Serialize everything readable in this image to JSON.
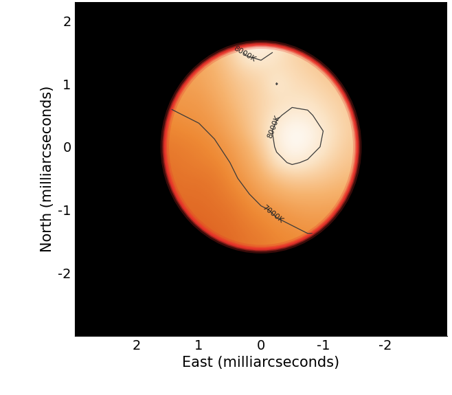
{
  "chart_data": {
    "type": "heatmap",
    "xlabel": "East (milliarcseconds)",
    "ylabel": "North (milliarcseconds)",
    "xlim": [
      3,
      -3
    ],
    "ylim": [
      -3,
      2.3
    ],
    "xticks": [
      2,
      1,
      0,
      -1,
      -2
    ],
    "yticks": [
      2,
      1,
      0,
      -1,
      -2
    ],
    "x": [
      1.5,
      1.25,
      1.0,
      0.75,
      0.5,
      0.25,
      0,
      -0.25,
      -0.5,
      -0.75,
      -1.0,
      -1.25,
      -1.5
    ],
    "y": [
      1.5,
      1.25,
      1.0,
      0.75,
      0.5,
      0.25,
      0,
      -0.25,
      -0.5,
      -0.75,
      -1.0,
      -1.25,
      -1.5
    ],
    "cells": [
      [
        7200,
        7250,
        7300,
        7450,
        7700,
        8050,
        8150,
        7950,
        7750,
        7650,
        7550,
        7500,
        7450
      ],
      [
        7150,
        7200,
        7250,
        7400,
        7600,
        7800,
        7850,
        7850,
        7800,
        7700,
        7600,
        7550,
        7500
      ],
      [
        7100,
        7150,
        7200,
        7350,
        7500,
        7650,
        7750,
        8010,
        7850,
        7800,
        7700,
        7600,
        7550
      ],
      [
        7050,
        7100,
        7100,
        7250,
        7450,
        7600,
        7750,
        7850,
        7900,
        7900,
        7800,
        7700,
        7600
      ],
      [
        6950,
        7000,
        7050,
        7150,
        7350,
        7550,
        7750,
        7950,
        8100,
        8050,
        7900,
        7750,
        7650
      ],
      [
        6850,
        6900,
        6950,
        7050,
        7250,
        7500,
        7750,
        8100,
        8300,
        8250,
        8000,
        7800,
        7650
      ],
      [
        6750,
        6800,
        6850,
        6950,
        7100,
        7350,
        7650,
        8050,
        8300,
        8200,
        7950,
        7750,
        7600
      ],
      [
        6700,
        6750,
        6800,
        6850,
        7000,
        7250,
        7500,
        7900,
        8050,
        7950,
        7800,
        7650,
        7550
      ],
      [
        6650,
        6700,
        6700,
        6750,
        6900,
        7100,
        7350,
        7550,
        7650,
        7650,
        7600,
        7500,
        7450
      ],
      [
        6600,
        6650,
        6650,
        6700,
        6800,
        6950,
        7150,
        7300,
        7400,
        7400,
        7400,
        7350,
        7300
      ],
      [
        6550,
        6600,
        6600,
        6650,
        6700,
        6850,
        6950,
        7050,
        7150,
        7200,
        7200,
        7150,
        7100
      ],
      [
        6500,
        6550,
        6550,
        6600,
        6650,
        6750,
        6850,
        6950,
        7000,
        7050,
        7050,
        7000,
        6950
      ],
      [
        6500,
        6500,
        6500,
        6550,
        6600,
        6700,
        6750,
        6850,
        6900,
        6950,
        6950,
        6950,
        6900
      ]
    ],
    "zlim": [
      6400,
      8400
    ],
    "colors": [
      "#d9561c",
      "#ee8a35",
      "#f6b36e",
      "#fbe3c4",
      "#ffffff"
    ],
    "contour_levels": [
      7000,
      8000
    ],
    "contour_labels": [
      "7000K",
      "8000K"
    ],
    "disk": {
      "center": [
        0,
        0
      ],
      "width": 3.1,
      "height": 3.25
    }
  }
}
